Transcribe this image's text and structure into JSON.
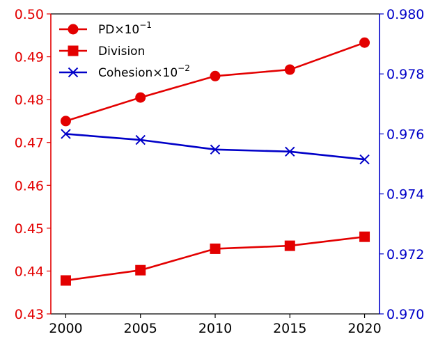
{
  "chart_data": {
    "type": "line",
    "x": [
      2000,
      2005,
      2010,
      2015,
      2020
    ],
    "xlim": [
      1999,
      2021
    ],
    "x_ticks": [
      2000,
      2005,
      2010,
      2015,
      2020
    ],
    "x_tick_labels": [
      "2000",
      "2005",
      "2010",
      "2015",
      "2020"
    ],
    "y_left": {
      "lim": [
        0.43,
        0.5
      ],
      "ticks": [
        0.43,
        0.44,
        0.45,
        0.46,
        0.47,
        0.48,
        0.49,
        0.5
      ],
      "tick_labels": [
        "0.43",
        "0.44",
        "0.45",
        "0.46",
        "0.47",
        "0.48",
        "0.49",
        "0.50"
      ],
      "color": "#e30000"
    },
    "y_right": {
      "lim": [
        0.97,
        0.98
      ],
      "ticks": [
        0.97,
        0.972,
        0.974,
        0.976,
        0.978,
        0.98
      ],
      "tick_labels": [
        "0.970",
        "0.972",
        "0.974",
        "0.976",
        "0.978",
        "0.980"
      ],
      "color": "#0000c8"
    },
    "grid": false,
    "legend_position": "top-left",
    "series": [
      {
        "name": "PD×10",
        "superscript": "−1",
        "axis": "left",
        "marker": "circle",
        "color": "#e30000",
        "values": [
          0.475,
          0.4805,
          0.4855,
          0.487,
          0.4933
        ]
      },
      {
        "name": "Division",
        "axis": "left",
        "marker": "square",
        "color": "#e30000",
        "values": [
          0.4378,
          0.4402,
          0.4452,
          0.4459,
          0.448
        ]
      },
      {
        "name": "Cohesion×10",
        "superscript": "−2",
        "axis": "right",
        "marker": "x",
        "color": "#0000c8",
        "values": [
          0.976,
          0.9758,
          0.97548,
          0.97541,
          0.97515
        ]
      }
    ]
  }
}
